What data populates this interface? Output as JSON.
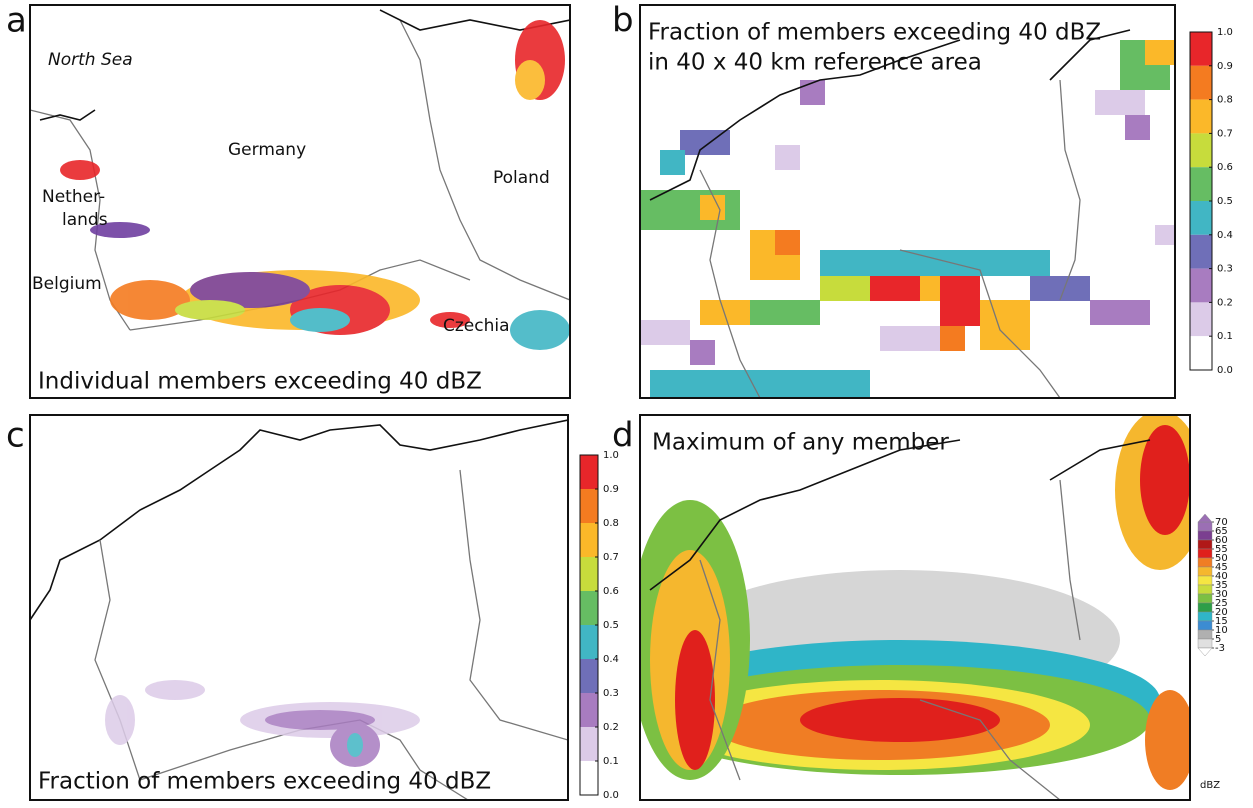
{
  "panels": [
    {
      "letter": "a",
      "labels": [
        "North Sea",
        "Germany",
        "Poland",
        "Nether-",
        "lands",
        "Belgium",
        "Czechia"
      ],
      "caption": "Individual members exceeding 40 dBZ"
    },
    {
      "letter": "b",
      "caption_lines": [
        "Fraction of members exceeding 40 dBZ",
        "in 40 x 40 km reference area"
      ],
      "colorbar": {
        "ticks": [
          {
            "value": 1,
            "label": "1.0"
          },
          {
            "value": 0.9,
            "label": "0.9"
          },
          {
            "value": 0.8,
            "label": "0.8"
          },
          {
            "value": 0.7,
            "label": "0.7"
          },
          {
            "value": 0.6,
            "label": "0.6"
          },
          {
            "value": 0.5,
            "label": "0.5"
          },
          {
            "value": 0.4,
            "label": "0.4"
          },
          {
            "value": 0.3,
            "label": "0.3"
          },
          {
            "value": 0.2,
            "label": "0.2"
          },
          {
            "value": 0.1,
            "label": "0.1"
          },
          {
            "value": 0,
            "label": "0.0"
          }
        ],
        "colors": [
          "#e8262a",
          "#f47b20",
          "#fbb829",
          "#c7dc3c",
          "#66bd63",
          "#41b6c4",
          "#6f6fb8",
          "#a87cc0",
          "#dccbe8",
          "#ffffff"
        ]
      }
    },
    {
      "letter": "c",
      "caption": "Fraction of members exceeding 40 dBZ",
      "colorbar": {
        "ticks": [
          {
            "value": 1,
            "label": "1.0"
          },
          {
            "value": 0.9,
            "label": "0.9"
          },
          {
            "value": 0.8,
            "label": "0.8"
          },
          {
            "value": 0.7,
            "label": "0.7"
          },
          {
            "value": 0.6,
            "label": "0.6"
          },
          {
            "value": 0.5,
            "label": "0.5"
          },
          {
            "value": 0.4,
            "label": "0.4"
          },
          {
            "value": 0.3,
            "label": "0.3"
          },
          {
            "value": 0.2,
            "label": "0.2"
          },
          {
            "value": 0.1,
            "label": "0.1"
          },
          {
            "value": 0,
            "label": "0.0"
          }
        ],
        "colors": [
          "#e8262a",
          "#f47b20",
          "#fbb829",
          "#c7dc3c",
          "#66bd63",
          "#41b6c4",
          "#6f6fb8",
          "#a87cc0",
          "#dccbe8",
          "#ffffff"
        ]
      }
    },
    {
      "letter": "d",
      "caption": "Maximum of any member",
      "colorbar": {
        "ticks": [
          70,
          65,
          60,
          55,
          50,
          45,
          40,
          35,
          30,
          25,
          20,
          15,
          10,
          5,
          -3
        ],
        "colors": [
          "#9b6fb4",
          "#7b3f90",
          "#b01818",
          "#e0201c",
          "#f07d24",
          "#f5b72e",
          "#f5e642",
          "#c8dc3c",
          "#7cc043",
          "#2e9e48",
          "#2fb5c8",
          "#3c8cd2",
          "#b0b0b0",
          "#e0e0e0"
        ],
        "unit": "dBZ"
      }
    }
  ]
}
